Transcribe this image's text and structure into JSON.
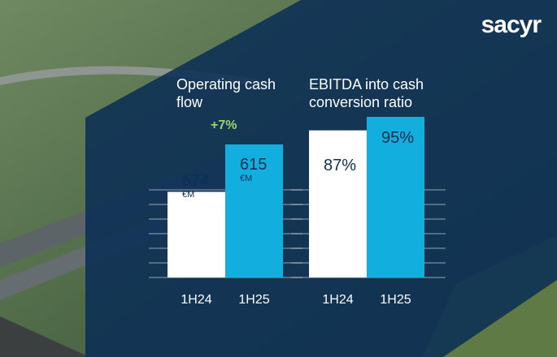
{
  "brand": {
    "logo_text": "sacyr"
  },
  "colors": {
    "panel": "#0b2f55",
    "bar_prior": "#ffffff",
    "bar_current": "#12aede",
    "gridline": "#ffffff",
    "label_dark": "#0b2f55",
    "change_green": "#9fd36a"
  },
  "chart_data": [
    {
      "type": "bar",
      "title": "Operating cash flow",
      "title_lines": [
        "Operating cash",
        "flow"
      ],
      "categories": [
        "1H24",
        "1H25"
      ],
      "values": [
        574,
        615
      ],
      "value_labels": [
        "574",
        "615"
      ],
      "unit_label": "€M",
      "annotation": "+7%",
      "grid": true
    },
    {
      "type": "bar",
      "title": "EBITDA into cash conversion ratio",
      "title_lines": [
        "EBITDA into cash",
        "conversion ratio"
      ],
      "categories": [
        "1H24",
        "1H25"
      ],
      "values": [
        87,
        95
      ],
      "value_labels": [
        "87%",
        "95%"
      ],
      "grid": true
    }
  ]
}
